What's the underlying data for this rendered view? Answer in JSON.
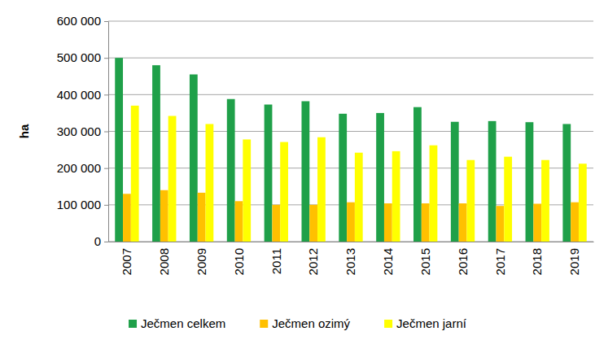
{
  "chart_data": {
    "type": "bar",
    "y_label": "ha",
    "categories": [
      "2007",
      "2008",
      "2009",
      "2010",
      "2011",
      "2012",
      "2013",
      "2014",
      "2015",
      "2016",
      "2017",
      "2018",
      "2019"
    ],
    "series": [
      {
        "name": "Ječmen celkem",
        "color": "#1fa049",
        "values": [
          500000,
          480000,
          455000,
          388000,
          373000,
          382000,
          348000,
          350000,
          366000,
          326000,
          328000,
          325000,
          320000
        ]
      },
      {
        "name": "Ječmen ozimý",
        "color": "#ffc000",
        "values": [
          130000,
          140000,
          133000,
          110000,
          100000,
          100000,
          107000,
          104000,
          104000,
          104000,
          97000,
          103000,
          107000
        ]
      },
      {
        "name": "Ječmen jarní",
        "color": "#ffff00",
        "values": [
          370000,
          342000,
          320000,
          278000,
          271000,
          284000,
          242000,
          246000,
          262000,
          222000,
          231000,
          222000,
          212000
        ]
      }
    ],
    "ylim": [
      0,
      600000
    ],
    "yticks": [
      0,
      {
        "value": 100000,
        "label": "100 000"
      },
      {
        "value": 200000,
        "label": "200 000"
      },
      {
        "value": 300000,
        "label": "300 000"
      },
      {
        "value": 400000,
        "label": "400 000"
      },
      {
        "value": 500000,
        "label": "500 000"
      },
      {
        "value": 600000,
        "label": "600 000"
      }
    ],
    "grid": true,
    "legend": "bottom"
  }
}
